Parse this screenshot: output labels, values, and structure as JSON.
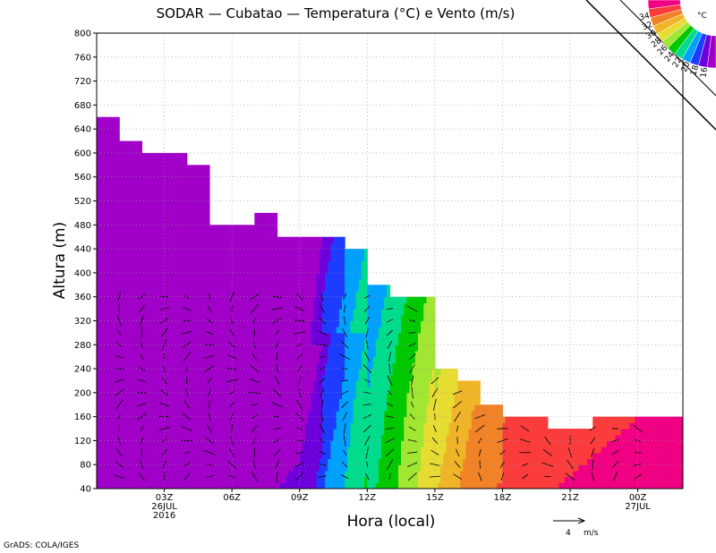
{
  "chart_data": {
    "type": "heatmap",
    "title": "SODAR — Cubatao — Temperatura (°C) e Vento (m/s)",
    "xlabel": "Hora (local)",
    "ylabel": "Altura (m)",
    "ylim": [
      40,
      800
    ],
    "y_ticks": [
      "40",
      "80",
      "120",
      "160",
      "200",
      "240",
      "280",
      "320",
      "360",
      "400",
      "440",
      "480",
      "520",
      "560",
      "600",
      "640",
      "680",
      "720",
      "760",
      "800"
    ],
    "x_range_hours": [
      -2,
      24
    ],
    "x_ticks": [
      {
        "hour": 1,
        "label": "03Z",
        "sub1": "26JUL",
        "sub2": "2016"
      },
      {
        "hour": 4,
        "label": "06Z",
        "sub1": "",
        "sub2": ""
      },
      {
        "hour": 7,
        "label": "09Z",
        "sub1": "",
        "sub2": ""
      },
      {
        "hour": 10,
        "label": "12Z",
        "sub1": "",
        "sub2": ""
      },
      {
        "hour": 13,
        "label": "15Z",
        "sub1": "",
        "sub2": ""
      },
      {
        "hour": 16,
        "label": "18Z",
        "sub1": "",
        "sub2": ""
      },
      {
        "hour": 19,
        "label": "21Z",
        "sub1": "",
        "sub2": ""
      },
      {
        "hour": 22,
        "label": "00Z",
        "sub1": "27JUL",
        "sub2": ""
      }
    ],
    "grid": true,
    "colorbar": {
      "unit": "°C",
      "levels": [
        "16",
        "18",
        "20",
        "22",
        "24",
        "26",
        "28",
        "30",
        "32",
        "34"
      ],
      "colors": [
        "#a000c8",
        "#6e00dc",
        "#1e3cff",
        "#00a0ff",
        "#00dc8c",
        "#00c800",
        "#a0e632",
        "#e6dc32",
        "#f0b428",
        "#f08228",
        "#fa3c3c",
        "#f00082"
      ]
    },
    "temperature_bands": [
      {
        "range": "< 16",
        "color": "#a000c8"
      },
      {
        "range": "16-18",
        "color": "#6e00dc"
      },
      {
        "range": "18-20",
        "color": "#1e3cff"
      },
      {
        "range": "20-22",
        "color": "#00a0ff"
      },
      {
        "range": "22-24",
        "color": "#00dc8c"
      },
      {
        "range": "24-26",
        "color": "#00c800"
      },
      {
        "range": "26-28",
        "color": "#a0e632"
      },
      {
        "range": "28-30",
        "color": "#e6dc32"
      },
      {
        "range": "30-32",
        "color": "#f0b428"
      },
      {
        "range": "32-34",
        "color": "#f08228"
      },
      {
        "range": "34-36",
        "color": "#fa3c3c"
      },
      {
        "range": "> 36",
        "color": "#f00082"
      }
    ],
    "data_top": [
      {
        "hour": -2,
        "alt": 660
      },
      {
        "hour": -1,
        "alt": 620
      },
      {
        "hour": 0,
        "alt": 600
      },
      {
        "hour": 1,
        "alt": 600
      },
      {
        "hour": 2,
        "alt": 580
      },
      {
        "hour": 3,
        "alt": 480
      },
      {
        "hour": 4,
        "alt": 480
      },
      {
        "hour": 5,
        "alt": 500
      },
      {
        "hour": 6,
        "alt": 460
      },
      {
        "hour": 7,
        "alt": 460
      },
      {
        "hour": 8,
        "alt": 460
      },
      {
        "hour": 9,
        "alt": 440
      },
      {
        "hour": 10,
        "alt": 380
      },
      {
        "hour": 11,
        "alt": 360
      },
      {
        "hour": 12,
        "alt": 360
      },
      {
        "hour": 13,
        "alt": 240
      },
      {
        "hour": 14,
        "alt": 220
      },
      {
        "hour": 15,
        "alt": 180
      },
      {
        "hour": 16,
        "alt": 160
      },
      {
        "hour": 17,
        "alt": 160
      },
      {
        "hour": 18,
        "alt": 140
      },
      {
        "hour": 19,
        "alt": 140
      },
      {
        "hour": 20,
        "alt": 160
      }
    ],
    "wind_reference": {
      "value": "4",
      "unit": "m/s"
    },
    "footer": "GrADS: COLA/IGES"
  }
}
